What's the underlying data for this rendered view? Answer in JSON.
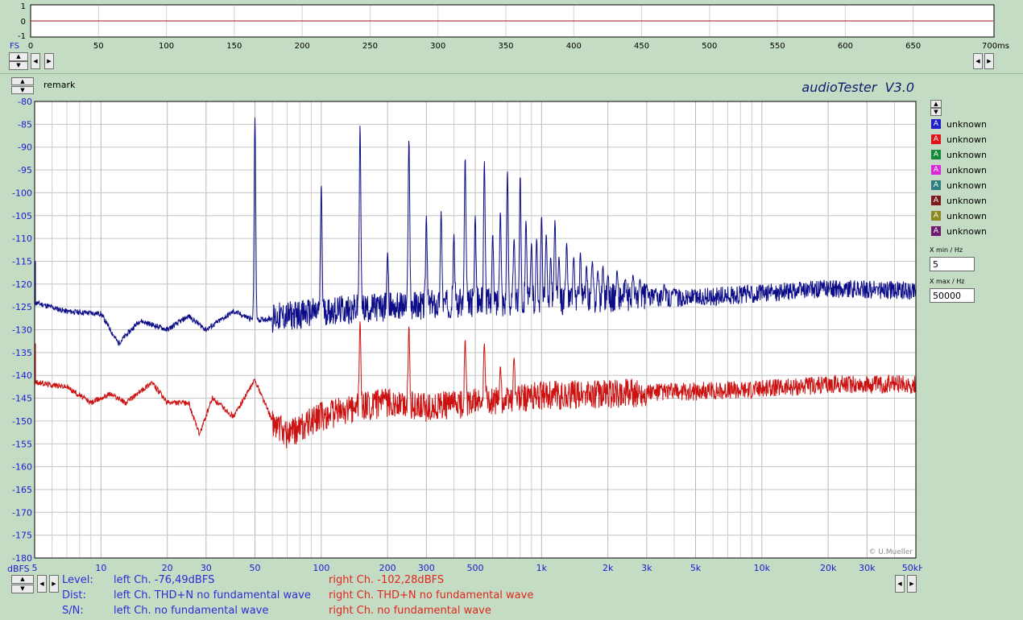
{
  "app": {
    "title": "audioTester  V3.0",
    "copyright": "© U.Mueller"
  },
  "colors": {
    "background": "#c4dcc4",
    "left_channel": "#0c0c88",
    "right_channel": "#cc1111",
    "grid": "#c6c6c6"
  },
  "remark_label": "remark",
  "time_scope": {
    "y_ticks": [
      "1",
      "0",
      "-1"
    ],
    "fs_label": "FS",
    "x_ticks": [
      "0",
      "50",
      "100",
      "150",
      "200",
      "250",
      "300",
      "350",
      "400",
      "450",
      "500",
      "550",
      "600",
      "650",
      "700ms"
    ]
  },
  "chart_data": {
    "type": "line",
    "x_scale": "log",
    "xlim": [
      5,
      50000
    ],
    "ylim": [
      -180,
      -80
    ],
    "x_ticks": [
      "5",
      "10",
      "20",
      "30",
      "50",
      "100",
      "200",
      "300",
      "500",
      "1k",
      "2k",
      "3k",
      "5k",
      "10k",
      "20k",
      "30k",
      "50kHz"
    ],
    "x_tick_values": [
      5,
      10,
      20,
      30,
      50,
      100,
      200,
      300,
      500,
      1000,
      2000,
      3000,
      5000,
      10000,
      20000,
      30000,
      50000
    ],
    "y_ticks": [
      "-80",
      "-85",
      "-90",
      "-95",
      "-100",
      "-105",
      "-110",
      "-115",
      "-120",
      "-125",
      "-130",
      "-135",
      "-140",
      "-145",
      "-150",
      "-155",
      "-160",
      "-165",
      "-170",
      "-175",
      "-180"
    ],
    "ylabel_unit": "dBFS",
    "grid": true,
    "series": [
      {
        "color": "#0c0c88",
        "floor": [
          [
            5,
            -124
          ],
          [
            7,
            -126
          ],
          [
            10,
            -126.5
          ],
          [
            12,
            -133
          ],
          [
            15,
            -128
          ],
          [
            20,
            -130
          ],
          [
            25,
            -127
          ],
          [
            30,
            -130
          ],
          [
            40,
            -126
          ],
          [
            50,
            -128
          ],
          [
            70,
            -127
          ],
          [
            100,
            -126
          ],
          [
            200,
            -125
          ],
          [
            500,
            -124
          ],
          [
            1000,
            -124
          ],
          [
            2000,
            -123
          ],
          [
            5000,
            -123
          ],
          [
            10000,
            -122
          ],
          [
            20000,
            -121
          ],
          [
            50000,
            -121.5
          ]
        ],
        "peaks": [
          [
            50,
            -83.5
          ],
          [
            100,
            -98
          ],
          [
            150,
            -85
          ],
          [
            200,
            -113
          ],
          [
            250,
            -88
          ],
          [
            300,
            -105
          ],
          [
            350,
            -104
          ],
          [
            400,
            -109
          ],
          [
            450,
            -92
          ],
          [
            500,
            -105
          ],
          [
            550,
            -93
          ],
          [
            600,
            -109
          ],
          [
            650,
            -104
          ],
          [
            700,
            -95
          ],
          [
            750,
            -110
          ],
          [
            800,
            -96
          ],
          [
            850,
            -106
          ],
          [
            900,
            -111
          ],
          [
            950,
            -110
          ],
          [
            1000,
            -105
          ],
          [
            1050,
            -109
          ],
          [
            1100,
            -114
          ],
          [
            1150,
            -106
          ],
          [
            1200,
            -114
          ],
          [
            1300,
            -111
          ],
          [
            1400,
            -114
          ],
          [
            1500,
            -113
          ],
          [
            1600,
            -116
          ],
          [
            1700,
            -115
          ],
          [
            1800,
            -117
          ],
          [
            1900,
            -116
          ],
          [
            2000,
            -118
          ],
          [
            2200,
            -117
          ],
          [
            2400,
            -119
          ],
          [
            2600,
            -118
          ],
          [
            2800,
            -119
          ],
          [
            3000,
            -120
          ],
          [
            3300,
            -121
          ],
          [
            3600,
            -120
          ],
          [
            4000,
            -121
          ]
        ]
      },
      {
        "color": "#cc1111",
        "floor": [
          [
            5,
            -141.5
          ],
          [
            7,
            -142.5
          ],
          [
            9,
            -146
          ],
          [
            11,
            -144
          ],
          [
            13,
            -146
          ],
          [
            17,
            -141.5
          ],
          [
            20,
            -146
          ],
          [
            25,
            -146
          ],
          [
            28,
            -153
          ],
          [
            32,
            -145
          ],
          [
            40,
            -149
          ],
          [
            50,
            -141
          ],
          [
            60,
            -150
          ],
          [
            70,
            -153
          ],
          [
            100,
            -149
          ],
          [
            150,
            -147
          ],
          [
            200,
            -146
          ],
          [
            300,
            -147
          ],
          [
            500,
            -146
          ],
          [
            1000,
            -144.5
          ],
          [
            2000,
            -144
          ],
          [
            5000,
            -143.5
          ],
          [
            10000,
            -143
          ],
          [
            20000,
            -142
          ],
          [
            50000,
            -142
          ]
        ],
        "peaks": [
          [
            150,
            -128
          ],
          [
            250,
            -129
          ],
          [
            450,
            -132
          ],
          [
            550,
            -133
          ],
          [
            650,
            -138
          ],
          [
            750,
            -136
          ]
        ]
      }
    ]
  },
  "legend": [
    {
      "color": "#2020c8",
      "label": "unknown"
    },
    {
      "color": "#e01616",
      "label": "unknown"
    },
    {
      "color": "#158a34",
      "label": "unknown"
    },
    {
      "color": "#d62ad6",
      "label": "unknown"
    },
    {
      "color": "#2e8080",
      "label": "unknown"
    },
    {
      "color": "#7a1c1c",
      "label": "unknown"
    },
    {
      "color": "#8a8a1e",
      "label": "unknown"
    },
    {
      "color": "#6e1c6e",
      "label": "unknown"
    }
  ],
  "x_range": {
    "min_label": "X min / Hz",
    "min_value": "5",
    "max_label": "X max / Hz",
    "max_value": "50000"
  },
  "status": {
    "level_label": "Level:",
    "level_left": "left Ch. -76,49dBFS",
    "level_right": "right Ch. -102,28dBFS",
    "dist_label": "Dist:",
    "dist_left": "left Ch. THD+N  no fundamental wave",
    "dist_right": "right Ch. THD+N  no fundamental wave",
    "sn_label": "S/N:",
    "sn_left": "left Ch.  no fundamental wave",
    "sn_right": "right Ch.  no fundamental wave"
  }
}
